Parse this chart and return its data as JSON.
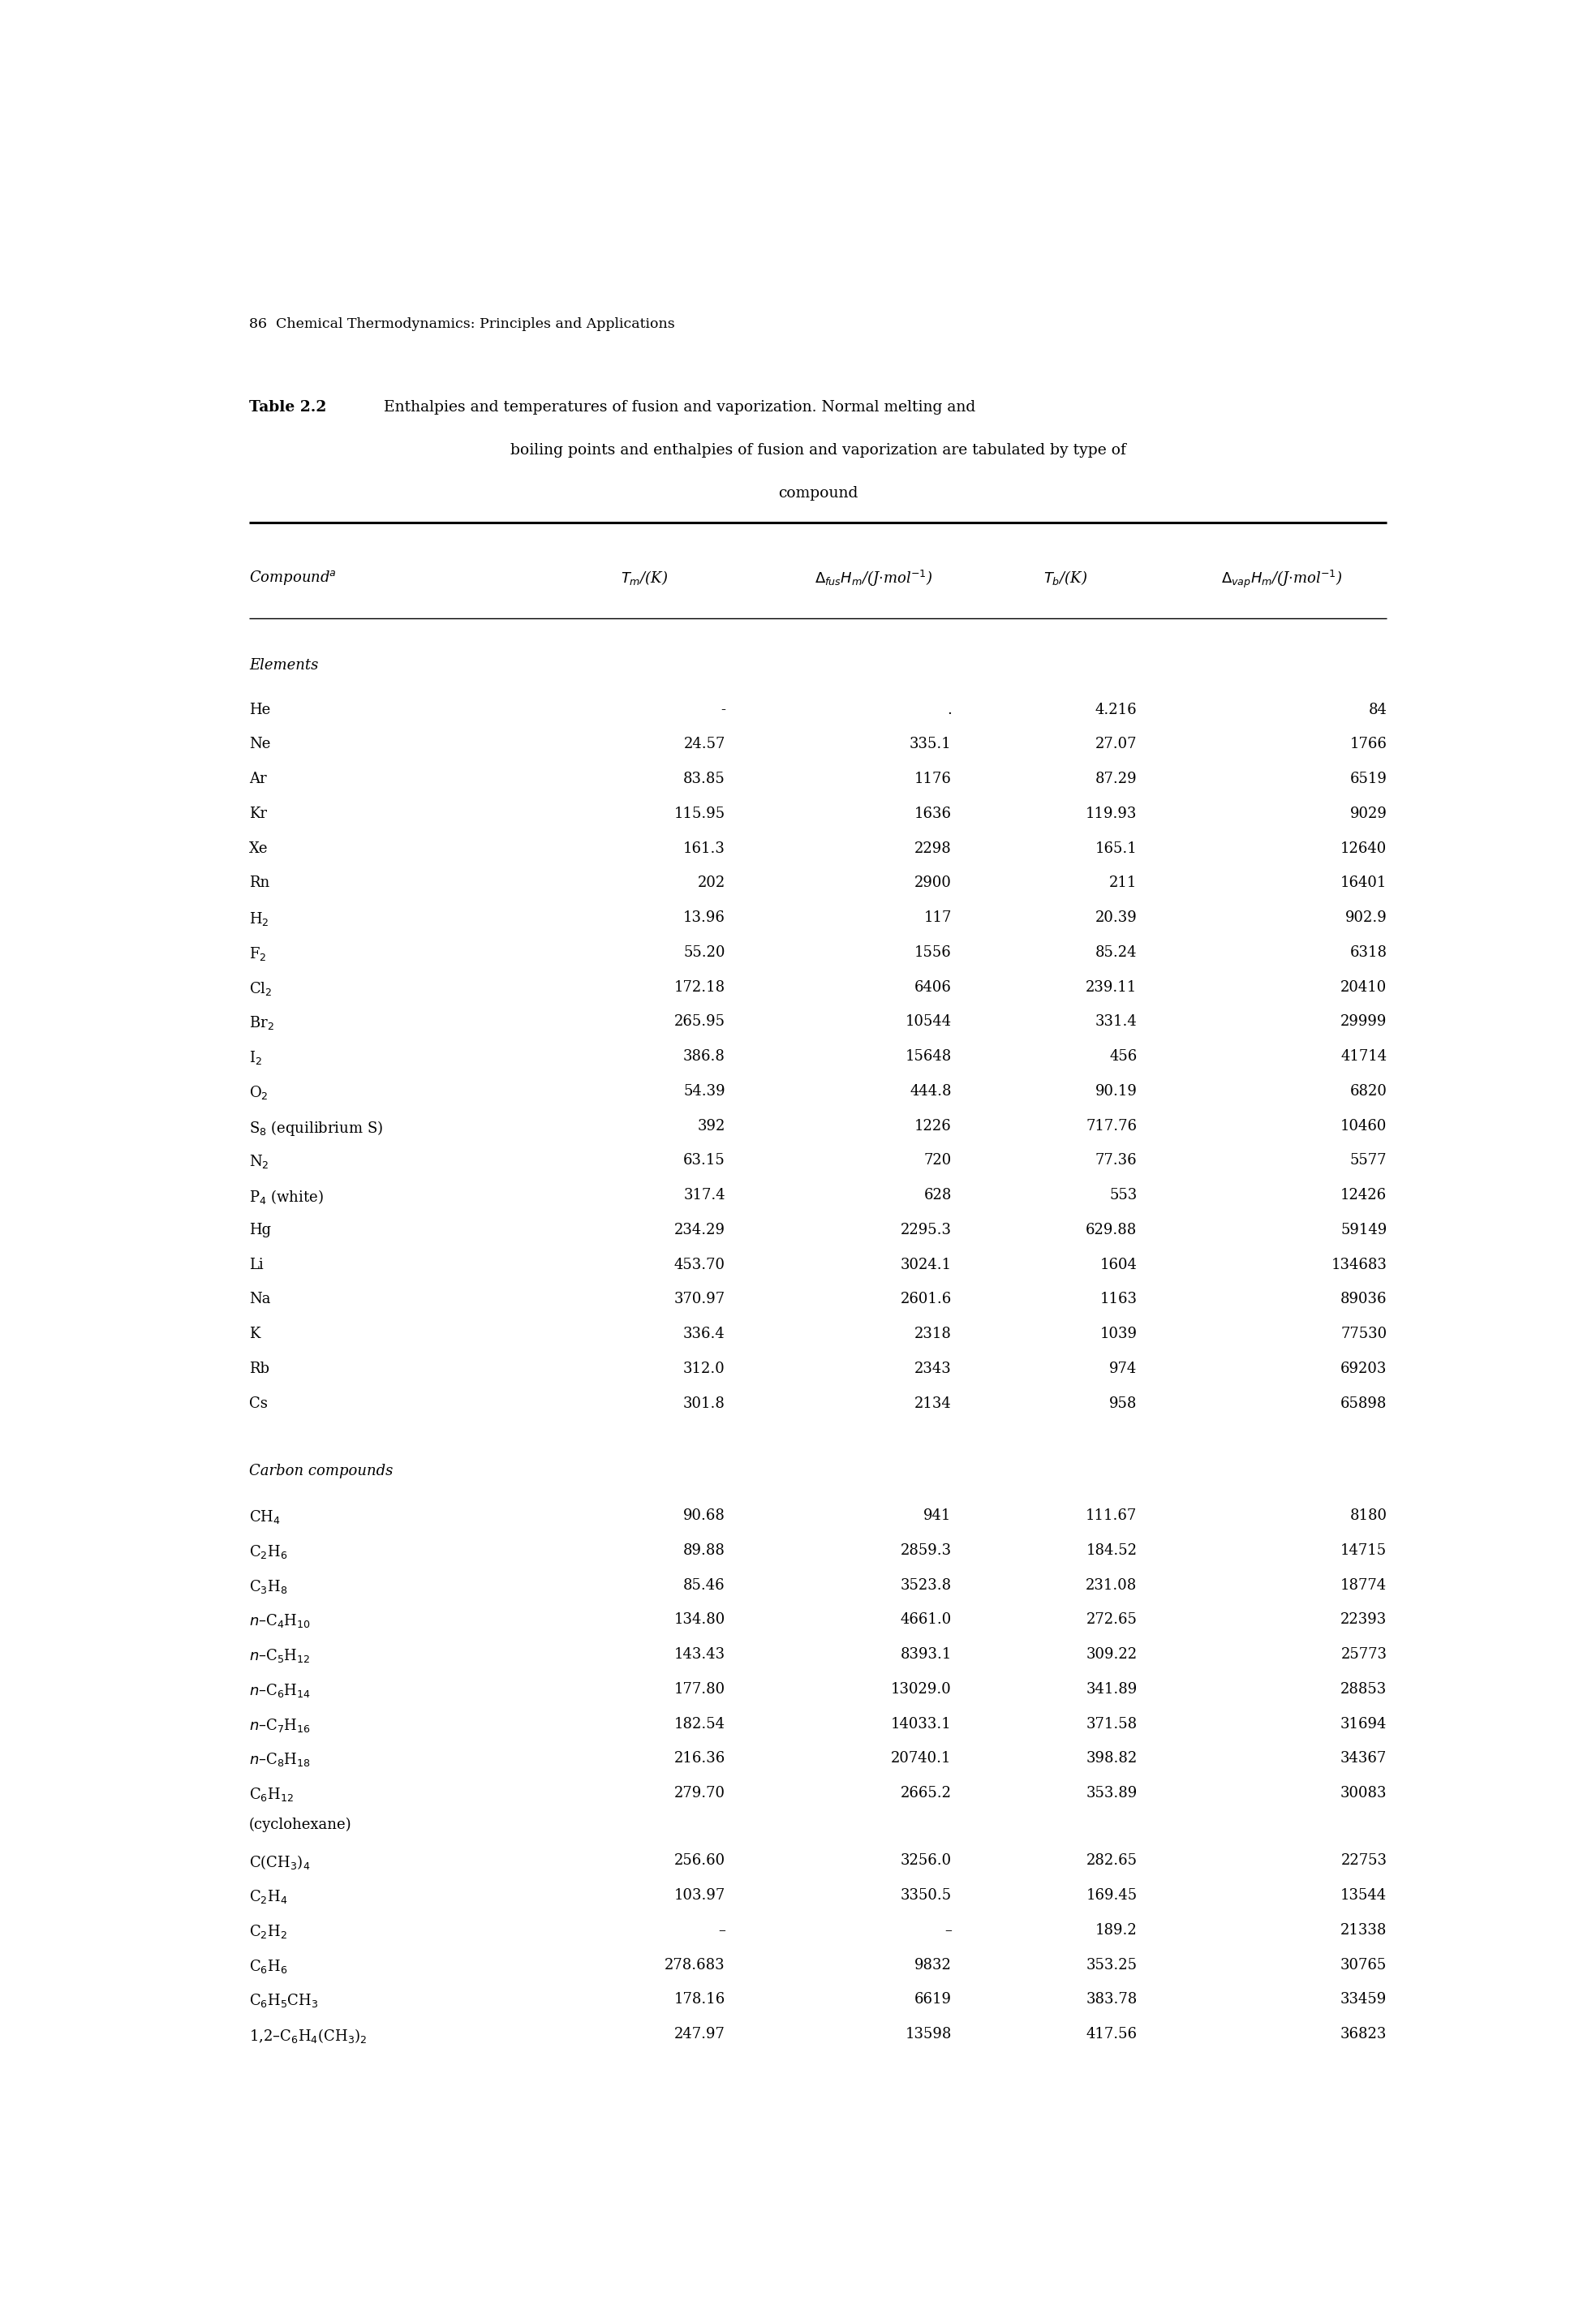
{
  "page_header": "86  Chemical Thermodynamics: Principles and Applications",
  "sections": [
    {
      "header": "Elements",
      "rows": [
        [
          "He",
          "-",
          ".",
          "4.216",
          "84"
        ],
        [
          "Ne",
          "24.57",
          "335.1",
          "27.07",
          "1766"
        ],
        [
          "Ar",
          "83.85",
          "1176",
          "87.29",
          "6519"
        ],
        [
          "Kr",
          "115.95",
          "1636",
          "119.93",
          "9029"
        ],
        [
          "Xe",
          "161.3",
          "2298",
          "165.1",
          "12640"
        ],
        [
          "Rn",
          "202",
          "2900",
          "211",
          "16401"
        ],
        [
          "H$_2$",
          "13.96",
          "117",
          "20.39",
          "902.9"
        ],
        [
          "F$_2$",
          "55.20",
          "1556",
          "85.24",
          "6318"
        ],
        [
          "Cl$_2$",
          "172.18",
          "6406",
          "239.11",
          "20410"
        ],
        [
          "Br$_2$",
          "265.95",
          "10544",
          "331.4",
          "29999"
        ],
        [
          "I$_2$",
          "386.8",
          "15648",
          "456",
          "41714"
        ],
        [
          "O$_2$",
          "54.39",
          "444.8",
          "90.19",
          "6820"
        ],
        [
          "S$_8$ (equilibrium S)",
          "392",
          "1226",
          "717.76",
          "10460"
        ],
        [
          "N$_2$",
          "63.15",
          "720",
          "77.36",
          "5577"
        ],
        [
          "P$_4$ (white)",
          "317.4",
          "628",
          "553",
          "12426"
        ],
        [
          "Hg",
          "234.29",
          "2295.3",
          "629.88",
          "59149"
        ],
        [
          "Li",
          "453.70",
          "3024.1",
          "1604",
          "134683"
        ],
        [
          "Na",
          "370.97",
          "2601.6",
          "1163",
          "89036"
        ],
        [
          "K",
          "336.4",
          "2318",
          "1039",
          "77530"
        ],
        [
          "Rb",
          "312.0",
          "2343",
          "974",
          "69203"
        ],
        [
          "Cs",
          "301.8",
          "2134",
          "958",
          "65898"
        ]
      ]
    },
    {
      "header": "Carbon compounds",
      "rows": [
        [
          "CH$_4$",
          "90.68",
          "941",
          "111.67",
          "8180"
        ],
        [
          "C$_2$H$_6$",
          "89.88",
          "2859.3",
          "184.52",
          "14715"
        ],
        [
          "C$_3$H$_8$",
          "85.46",
          "3523.8",
          "231.08",
          "18774"
        ],
        [
          "$n$–C$_4$H$_{10}$",
          "134.80",
          "4661.0",
          "272.65",
          "22393"
        ],
        [
          "$n$–C$_5$H$_{12}$",
          "143.43",
          "8393.1",
          "309.22",
          "25773"
        ],
        [
          "$n$–C$_6$H$_{14}$",
          "177.80",
          "13029.0",
          "341.89",
          "28853"
        ],
        [
          "$n$–C$_7$H$_{16}$",
          "182.54",
          "14033.1",
          "371.58",
          "31694"
        ],
        [
          "$n$–C$_8$H$_{18}$",
          "216.36",
          "20740.1",
          "398.82",
          "34367"
        ],
        [
          "C$_6$H$_{12}$|(cyclohexane)",
          "279.70",
          "2665.2",
          "353.89",
          "30083"
        ],
        [
          "C(CH$_3$)$_4$",
          "256.60",
          "3256.0",
          "282.65",
          "22753"
        ],
        [
          "C$_2$H$_4$",
          "103.97",
          "3350.5",
          "169.45",
          "13544"
        ],
        [
          "C$_2$H$_2$",
          "–",
          "–",
          "189.2",
          "21338"
        ],
        [
          "C$_6$H$_6$",
          "278.683",
          "9832",
          "353.25",
          "30765"
        ],
        [
          "C$_6$H$_5$CH$_3$",
          "178.16",
          "6619",
          "383.78",
          "33459"
        ],
        [
          "1,2–C$_6$H$_4$(CH$_3$)$_2$",
          "247.97",
          "13598",
          "417.56",
          "36823"
        ]
      ]
    }
  ]
}
